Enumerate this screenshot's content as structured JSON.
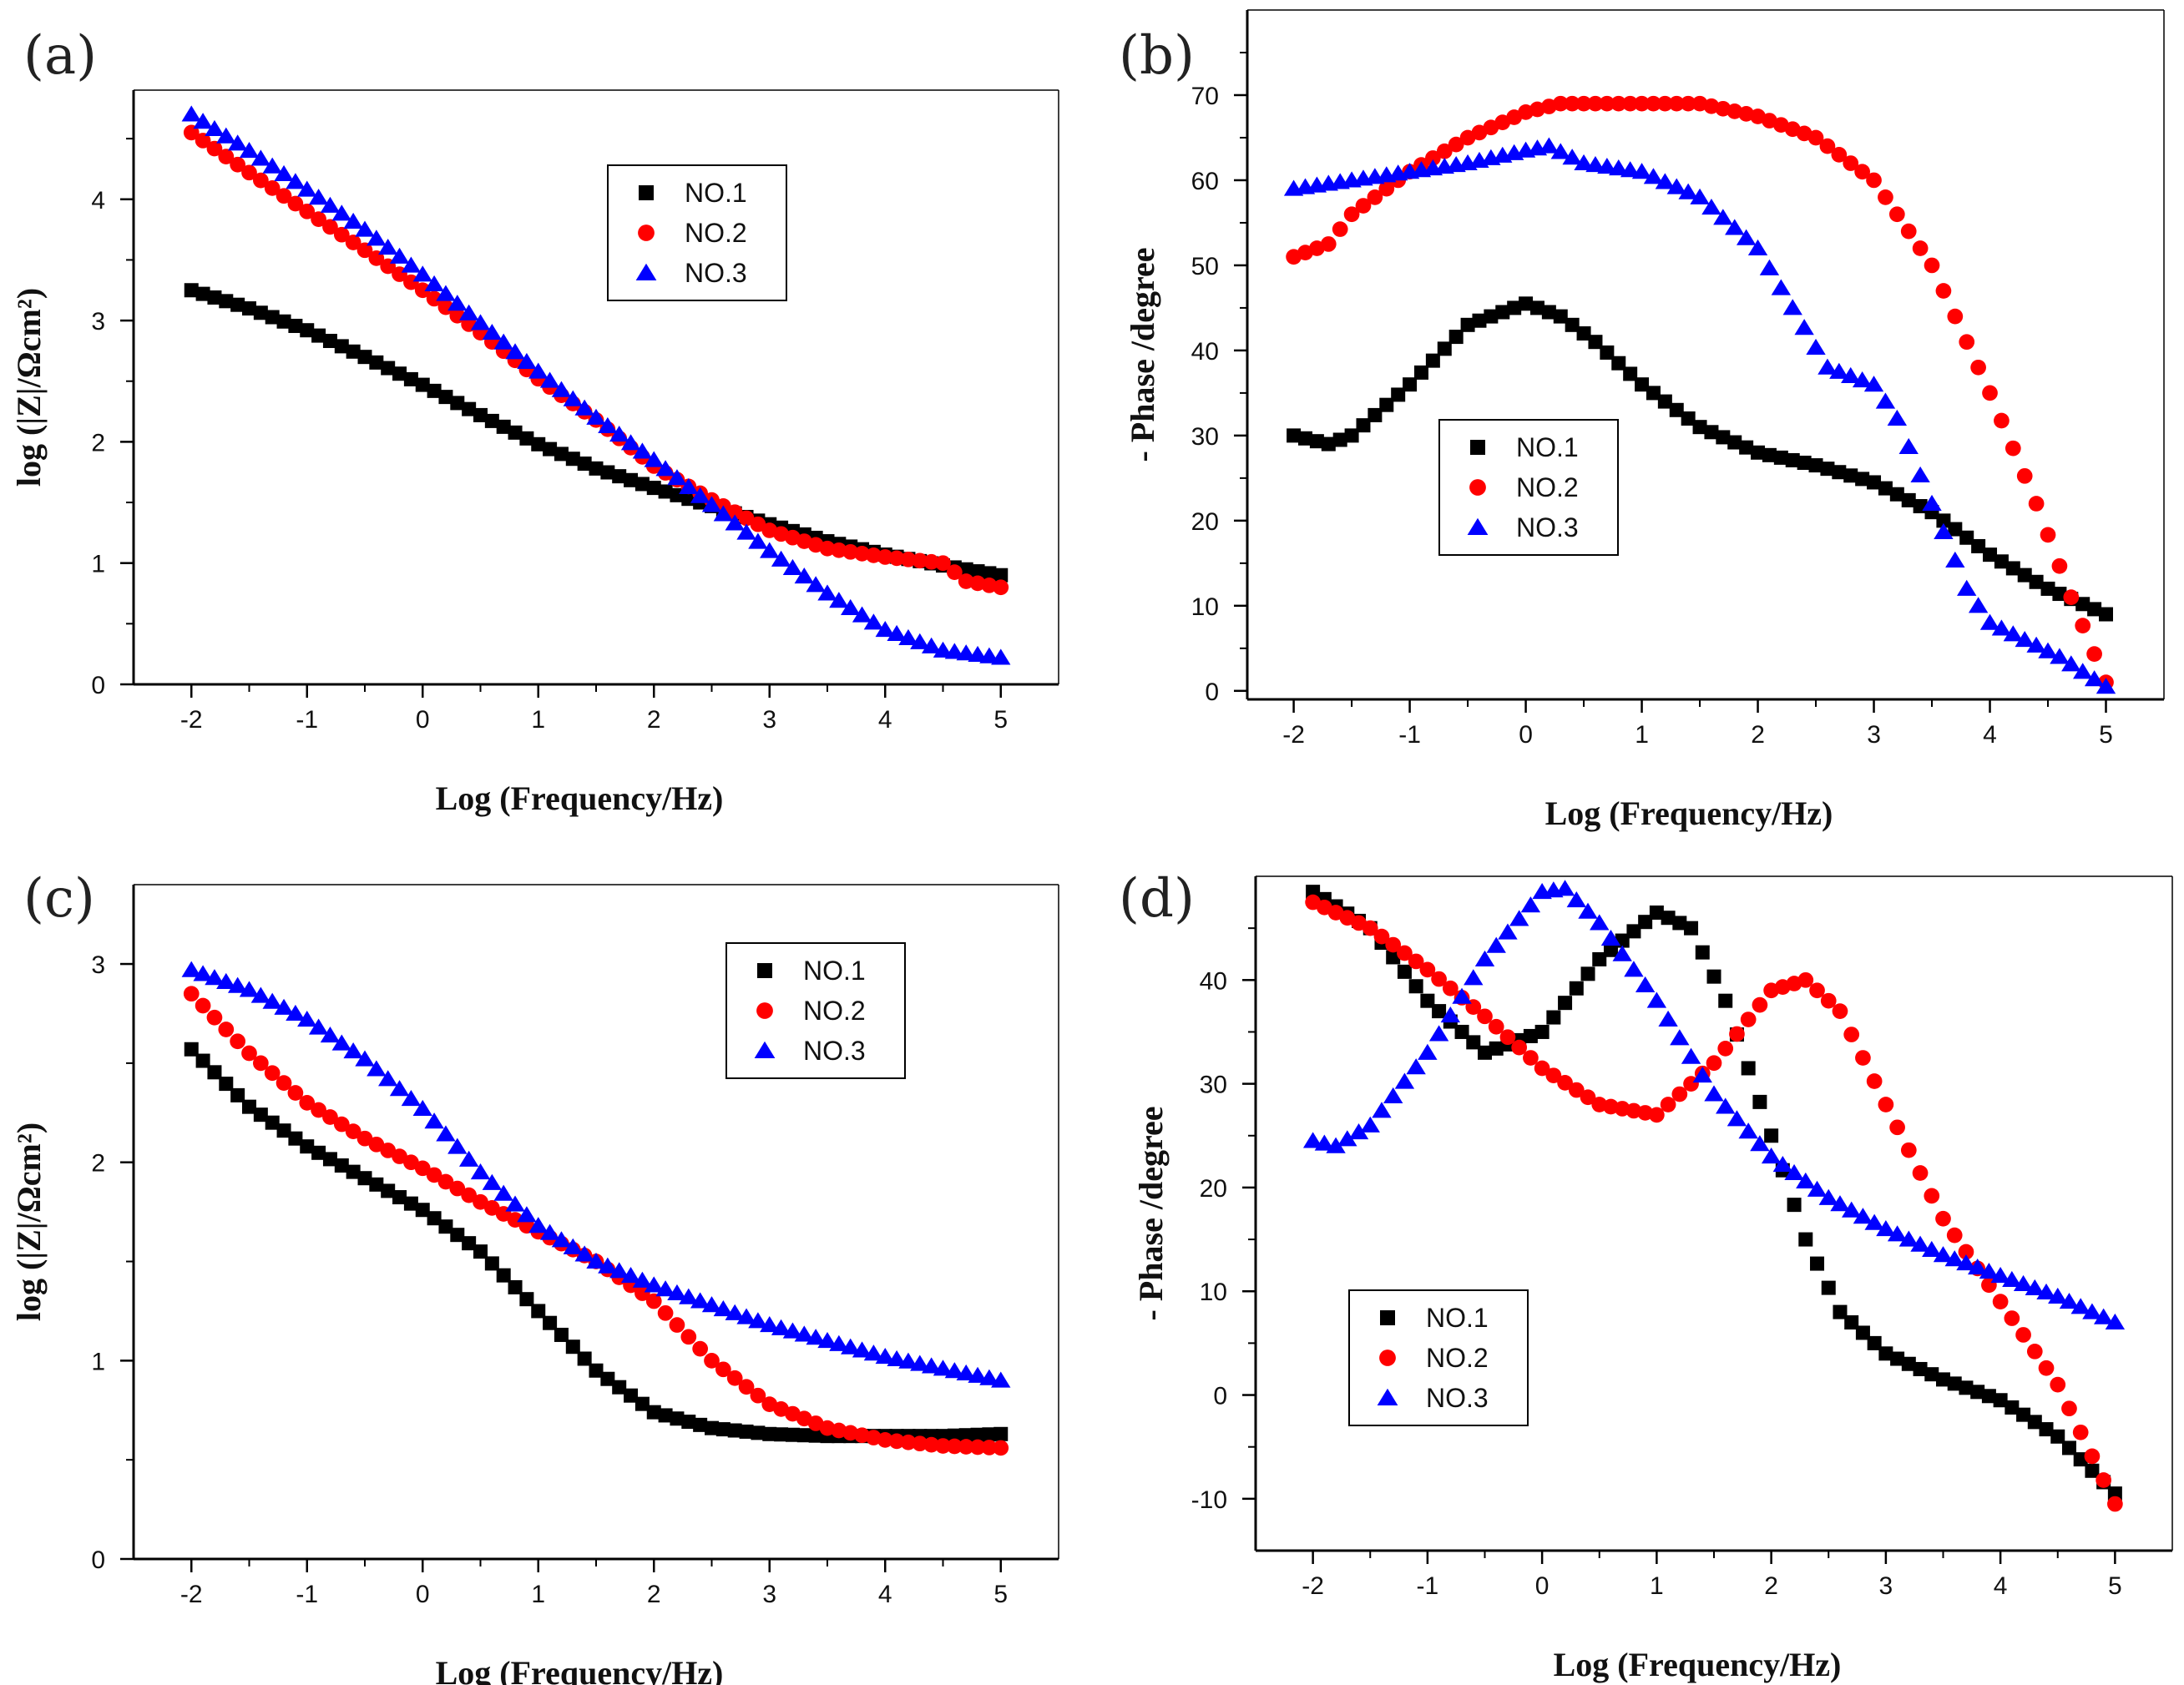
{
  "colors": {
    "NO.1": "#000000",
    "NO.2": "#ff0000",
    "NO.3": "#0000ff"
  },
  "chart_data": [
    {
      "panel": "(a)",
      "type": "scatter",
      "xlabel": "Log (Frequency/Hz)",
      "ylabel": "log (|Z|/Ωcm²)",
      "xlim": [
        -2.5,
        5.5
      ],
      "ylim": [
        0,
        4.9
      ],
      "xticks": [
        -2,
        -1,
        0,
        1,
        2,
        3,
        4,
        5
      ],
      "yticks": [
        0,
        1,
        2,
        3,
        4
      ],
      "legend_position": "upper-center",
      "series": [
        {
          "name": "NO.1",
          "marker": "square",
          "x": [
            -2,
            -1.5,
            -1,
            -0.5,
            0,
            0.5,
            1,
            1.5,
            2,
            2.5,
            3,
            3.5,
            4,
            4.5,
            5
          ],
          "y": [
            3.25,
            3.1,
            2.92,
            2.7,
            2.47,
            2.22,
            1.98,
            1.78,
            1.62,
            1.47,
            1.32,
            1.18,
            1.07,
            0.98,
            0.9
          ]
        },
        {
          "name": "NO.2",
          "marker": "circle",
          "x": [
            -2,
            -1.5,
            -1,
            -0.5,
            0,
            0.5,
            1,
            1.5,
            2,
            2.5,
            3,
            3.5,
            4,
            4.5,
            4.7,
            5
          ],
          "y": [
            4.55,
            4.22,
            3.9,
            3.58,
            3.25,
            2.9,
            2.52,
            2.18,
            1.8,
            1.52,
            1.27,
            1.12,
            1.05,
            1.0,
            0.85,
            0.8
          ]
        },
        {
          "name": "NO.3",
          "marker": "triangle",
          "x": [
            -2,
            -1.5,
            -1,
            -0.5,
            0,
            0.5,
            1,
            1.5,
            2,
            2.5,
            3,
            3.5,
            4,
            4.5,
            5
          ],
          "y": [
            4.7,
            4.4,
            4.08,
            3.75,
            3.38,
            2.98,
            2.58,
            2.2,
            1.85,
            1.48,
            1.1,
            0.75,
            0.45,
            0.28,
            0.22
          ]
        }
      ]
    },
    {
      "panel": "(b)",
      "type": "scatter",
      "xlabel": "Log (Frequency/Hz)",
      "ylabel": "- Phase /degree",
      "xlim": [
        -2.4,
        5.5
      ],
      "ylim": [
        -1,
        80
      ],
      "xticks": [
        -2,
        -1,
        0,
        1,
        2,
        3,
        4,
        5
      ],
      "yticks": [
        0,
        10,
        20,
        30,
        40,
        50,
        60,
        70
      ],
      "legend_position": "middle-left",
      "series": [
        {
          "name": "NO.1",
          "marker": "square",
          "x": [
            -2,
            -1.7,
            -1.5,
            -1,
            -0.5,
            0,
            0.3,
            0.6,
            1,
            1.5,
            2,
            2.5,
            3,
            3.5,
            4,
            4.5,
            5
          ],
          "y": [
            30,
            29,
            30,
            36,
            43,
            45.5,
            44,
            41,
            36,
            31,
            28,
            26.5,
            24.5,
            21,
            16,
            12,
            9
          ]
        },
        {
          "name": "NO.2",
          "marker": "circle",
          "x": [
            -2,
            -1.7,
            -1.5,
            -1,
            -0.5,
            0,
            0.3,
            0.6,
            1,
            1.5,
            2,
            2.5,
            3,
            3.5,
            4,
            4.4,
            4.7,
            5
          ],
          "y": [
            51,
            52.5,
            56,
            61,
            65,
            68,
            69,
            69,
            69,
            69,
            67.5,
            65,
            60,
            50,
            35,
            22,
            11,
            1
          ]
        },
        {
          "name": "NO.3",
          "marker": "triangle",
          "x": [
            -2,
            -1.5,
            -1,
            -0.5,
            0,
            0.2,
            0.5,
            1,
            1.5,
            2,
            2.3,
            2.6,
            3,
            3.2,
            3.5,
            3.8,
            4,
            4.3,
            4.6,
            5
          ],
          "y": [
            59,
            60,
            61,
            62,
            63.5,
            64,
            62,
            61,
            58,
            52,
            45,
            38,
            36,
            32,
            22,
            12,
            8,
            6,
            4,
            0.5
          ]
        }
      ]
    },
    {
      "panel": "(c)",
      "type": "scatter",
      "xlabel": "Log (Frequency/Hz)",
      "ylabel": "log (|Z|/Ωcm²)",
      "xlim": [
        -2.5,
        5.5
      ],
      "ylim": [
        0,
        3.4
      ],
      "xticks": [
        -2,
        -1,
        0,
        1,
        2,
        3,
        4,
        5
      ],
      "yticks": [
        0,
        1,
        2,
        3
      ],
      "legend_position": "top-right",
      "series": [
        {
          "name": "NO.1",
          "marker": "square",
          "x": [
            -2,
            -1.5,
            -1,
            -0.5,
            0,
            0.5,
            1,
            1.5,
            2,
            2.5,
            3,
            3.5,
            4,
            4.5,
            5
          ],
          "y": [
            2.57,
            2.28,
            2.08,
            1.92,
            1.76,
            1.55,
            1.25,
            0.95,
            0.74,
            0.66,
            0.63,
            0.62,
            0.62,
            0.62,
            0.63
          ]
        },
        {
          "name": "NO.2",
          "marker": "circle",
          "x": [
            -2,
            -1.5,
            -1,
            -0.5,
            0,
            0.5,
            1,
            1.5,
            2,
            2.5,
            3,
            3.5,
            4,
            4.5,
            5
          ],
          "y": [
            2.85,
            2.55,
            2.3,
            2.12,
            1.97,
            1.8,
            1.65,
            1.5,
            1.3,
            1.0,
            0.78,
            0.66,
            0.6,
            0.57,
            0.56
          ]
        },
        {
          "name": "NO.3",
          "marker": "triangle",
          "x": [
            -2,
            -1.5,
            -1,
            -0.5,
            0,
            0.5,
            1,
            1.5,
            2,
            2.5,
            3,
            3.5,
            4,
            4.5,
            5
          ],
          "y": [
            2.97,
            2.87,
            2.72,
            2.52,
            2.27,
            1.95,
            1.68,
            1.5,
            1.38,
            1.28,
            1.18,
            1.1,
            1.02,
            0.96,
            0.9
          ]
        }
      ]
    },
    {
      "panel": "(d)",
      "type": "scatter",
      "xlabel": "Log (Frequency/Hz)",
      "ylabel": "- Phase /degree",
      "xlim": [
        -2.5,
        5.5
      ],
      "ylim": [
        -15,
        50
      ],
      "xticks": [
        -2,
        -1,
        0,
        1,
        2,
        3,
        4,
        5
      ],
      "yticks": [
        -10,
        0,
        10,
        20,
        30,
        40
      ],
      "legend_position": "lower-left",
      "series": [
        {
          "name": "NO.1",
          "marker": "square",
          "x": [
            -2,
            -1.5,
            -1,
            -0.5,
            0,
            0.5,
            1,
            1.3,
            1.6,
            2,
            2.3,
            2.6,
            3,
            3.5,
            4,
            4.5,
            5
          ],
          "y": [
            48.5,
            45,
            38,
            33,
            35,
            42,
            46.5,
            45,
            38,
            25,
            15,
            8,
            4,
            1.5,
            -0.5,
            -4,
            -9.5
          ]
        },
        {
          "name": "NO.2",
          "marker": "circle",
          "x": [
            -2,
            -1.5,
            -1,
            -0.5,
            0,
            0.5,
            1,
            1.5,
            2,
            2.3,
            2.6,
            3,
            3.5,
            4,
            4.5,
            5
          ],
          "y": [
            47.5,
            45,
            41,
            36.5,
            31.5,
            28,
            27,
            32,
            39,
            40,
            37,
            28,
            17,
            9,
            1,
            -10.5
          ]
        },
        {
          "name": "NO.3",
          "marker": "triangle",
          "x": [
            -2,
            -1.8,
            -1.5,
            -1,
            -0.5,
            0,
            0.2,
            0.5,
            1,
            1.5,
            2,
            2.5,
            3,
            3.5,
            4,
            4.5,
            5
          ],
          "y": [
            24.5,
            24,
            26,
            33,
            42,
            48.5,
            48.8,
            45.5,
            38,
            29,
            23,
            19,
            16,
            13.5,
            11.5,
            9.5,
            7
          ]
        }
      ]
    }
  ]
}
